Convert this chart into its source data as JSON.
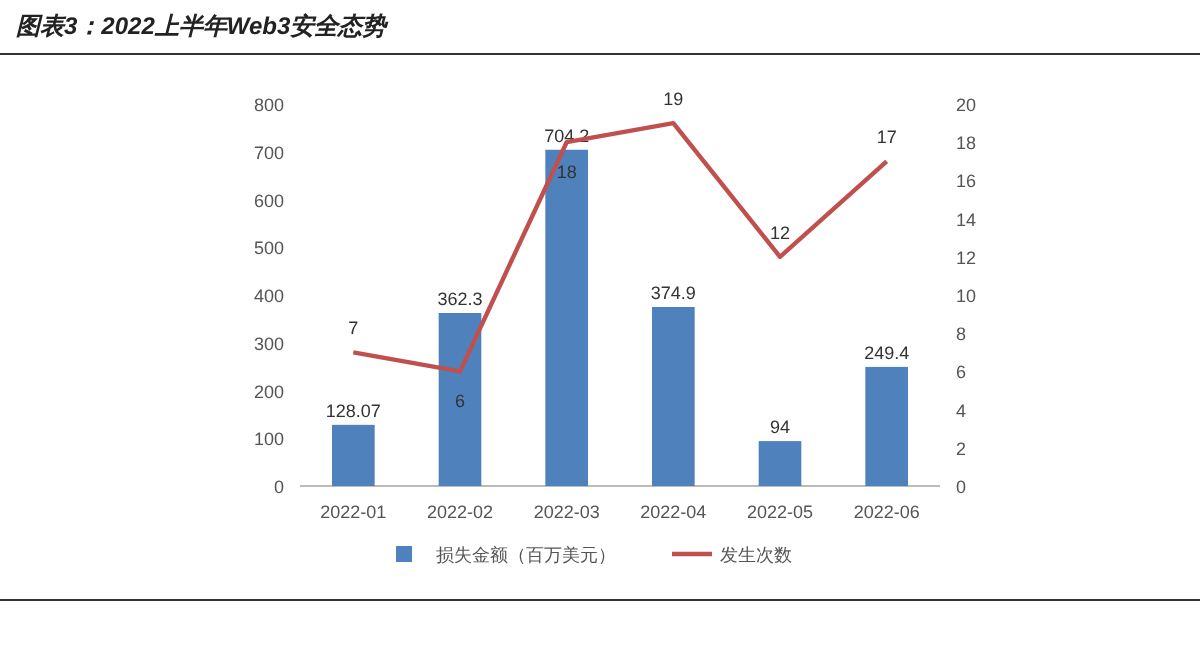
{
  "chart_data": {
    "type": "bar",
    "title": "图表3：2022上半年Web3安全态势",
    "categories": [
      "2022-01",
      "2022-02",
      "2022-03",
      "2022-04",
      "2022-05",
      "2022-06"
    ],
    "series": [
      {
        "name": "损失金额（百万美元）",
        "color": "#4f81bd",
        "values": [
          128.07,
          362.3,
          704.2,
          374.9,
          94,
          249.4
        ]
      },
      {
        "name": "发生次数",
        "type": "line",
        "axis": "y2",
        "color": "#c0504d",
        "values": [
          7,
          6,
          18,
          19,
          12,
          17
        ]
      }
    ],
    "ylim": [
      0,
      800
    ],
    "yticks": [
      0,
      100,
      200,
      300,
      400,
      500,
      600,
      700,
      800
    ],
    "y2lim": [
      0,
      20
    ],
    "y2ticks": [
      0,
      2,
      4,
      6,
      8,
      10,
      12,
      14,
      16,
      18,
      20
    ],
    "data_labels": true,
    "legend": "bottom",
    "grid": false,
    "marker": "none",
    "line_style": "solid"
  }
}
